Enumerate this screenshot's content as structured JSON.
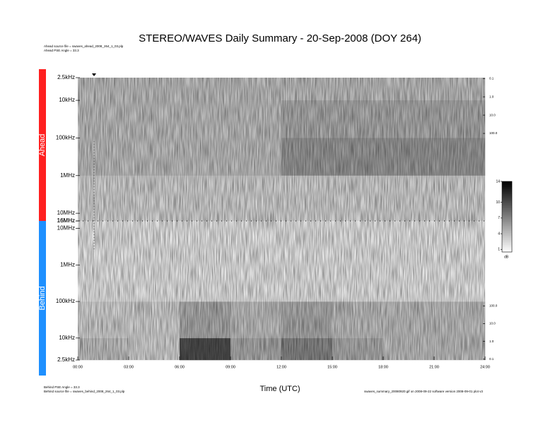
{
  "chart_data": {
    "type": "heatmap",
    "title": "STEREO/WAVES Daily Summary - 20-Sep-2008 (DOY 264)",
    "x_label": "Time (UTC)",
    "x": [
      0,
      3,
      6,
      9,
      12,
      15,
      18,
      21,
      24
    ],
    "xlim": [
      0,
      24
    ],
    "xticks": [
      {
        "value": 0,
        "label": "00:00"
      },
      {
        "value": 3,
        "label": "03:00"
      },
      {
        "value": 6,
        "label": "06:00"
      },
      {
        "value": 9,
        "label": "09:00"
      },
      {
        "value": 12,
        "label": "12:00"
      },
      {
        "value": 15,
        "label": "15:00"
      },
      {
        "value": 18,
        "label": "18:00"
      },
      {
        "value": 21,
        "label": "21:00"
      },
      {
        "value": 24,
        "label": "24:00"
      }
    ],
    "colorbar": {
      "label": "dB",
      "lim": [
        0.5,
        14
      ],
      "ticks": [
        1,
        4,
        7,
        10,
        14
      ]
    },
    "footer_note": "swaves_summary_20080920.gif on 2008-09-22 software version 2008-09-01 plot v3",
    "panels": [
      {
        "name": "Ahead",
        "color": "#ff2020",
        "notes": [
          "Ahead source file = swaves_ahead_2008_264_1_03.plp",
          "Ahead PSE Angle = 33.3"
        ],
        "log_scale": true,
        "ylim": [
          2500,
          16000000
        ],
        "yticks": [
          {
            "value": 2500,
            "label": "2.5kHz"
          },
          {
            "value": 10000,
            "label": "10kHz"
          },
          {
            "value": 100000,
            "label": "100kHz"
          },
          {
            "value": 1000000,
            "label": "1MHz"
          },
          {
            "value": 10000000,
            "label": "10MHz"
          },
          {
            "value": 16000000,
            "label": "16MHz"
          }
        ],
        "y2lim": [
          0.09,
          6000000
        ],
        "y2ticks": [
          0.1,
          {
            "value": 1,
            "label": "1.0"
          },
          {
            "value": 10,
            "label": "10.0"
          },
          {
            "value": 100,
            "label": "100.0"
          }
        ],
        "freq_bins": [
          2500,
          10000,
          100000,
          1000000,
          10000000,
          16000000
        ],
        "z": [
          [
            4,
            4,
            4,
            4,
            4,
            4,
            4,
            4
          ],
          [
            4,
            4,
            4,
            4,
            5,
            5,
            5,
            5
          ],
          [
            4,
            4,
            4,
            4,
            6,
            6,
            6,
            6
          ],
          [
            3,
            3,
            3,
            3,
            3,
            3,
            3,
            3
          ],
          [
            3,
            3,
            3,
            3,
            3,
            3,
            3,
            3
          ]
        ]
      },
      {
        "name": "Behind",
        "color": "#1e90ff",
        "notes": [
          "Behind PSE Angle = 33.3",
          "Behind source file = swaves_behind_2008_264_1_03.plp"
        ],
        "log_scale": true,
        "ylim": [
          2500,
          16000000
        ],
        "yticks": [
          {
            "value": 2500,
            "label": "2.5kHz"
          },
          {
            "value": 10000,
            "label": "10kHz"
          },
          {
            "value": 100000,
            "label": "100kHz"
          },
          {
            "value": 1000000,
            "label": "1MHz"
          },
          {
            "value": 10000000,
            "label": "10MHz"
          },
          {
            "value": 16000000,
            "label": "16MHz"
          }
        ],
        "y2lim": [
          0.09,
          6000000
        ],
        "y2ticks": [
          0.1,
          {
            "value": 1,
            "label": "1.0"
          },
          {
            "value": 10,
            "label": "10.0"
          },
          {
            "value": 100,
            "label": "100.0"
          }
        ],
        "freq_bins": [
          2500,
          10000,
          100000,
          1000000,
          10000000,
          16000000
        ],
        "z": [
          [
            4,
            3,
            10,
            5,
            7,
            5,
            4,
            4
          ],
          [
            3,
            3,
            5,
            4,
            5,
            4,
            4,
            4
          ],
          [
            2,
            2,
            2,
            2,
            2,
            2,
            2,
            2
          ],
          [
            2,
            2,
            2,
            2,
            2,
            2,
            2,
            2
          ],
          [
            2,
            2,
            2,
            2,
            2,
            2,
            2,
            2
          ]
        ]
      }
    ]
  }
}
